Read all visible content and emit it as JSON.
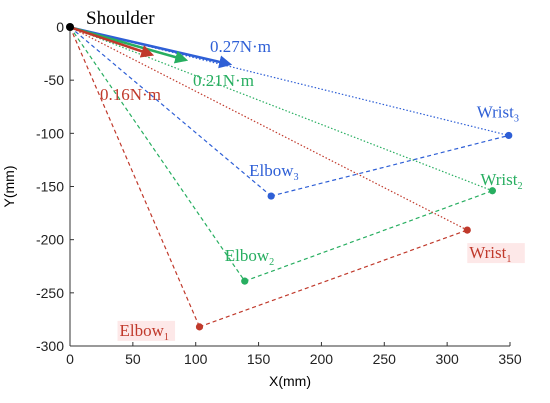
{
  "chart_data": {
    "type": "line",
    "title": "",
    "xlabel": "X(mm)",
    "ylabel": "Y(mm)",
    "xlim": [
      0,
      350
    ],
    "ylim": [
      -300,
      0
    ],
    "xticks": [
      0,
      50,
      100,
      150,
      200,
      250,
      300,
      350
    ],
    "yticks": [
      0,
      -50,
      -100,
      -150,
      -200,
      -250,
      -300
    ],
    "grid": false,
    "legend": "none",
    "shoulder": {
      "label": "Shoulder",
      "x": 0,
      "y": 0,
      "color": "#000000"
    },
    "series": [
      {
        "id": "1",
        "color": "#c0392b",
        "elbow": {
          "label": "Elbow",
          "sub": "1",
          "x": 103,
          "y": -282
        },
        "wrist": {
          "label": "Wrist",
          "sub": "1",
          "x": 316,
          "y": -191
        },
        "torque": {
          "label": "0.16N·m",
          "tip": [
            65,
            -26
          ],
          "from": [
            2,
            -1
          ]
        }
      },
      {
        "id": "2",
        "color": "#27ae60",
        "elbow": {
          "label": "Elbow",
          "sub": "2",
          "x": 139,
          "y": -239
        },
        "wrist": {
          "label": "Wrist",
          "sub": "2",
          "x": 336,
          "y": -154
        },
        "torque": {
          "label": "0.21N·m",
          "tip": [
            92,
            -31
          ],
          "from": [
            2,
            -1
          ]
        }
      },
      {
        "id": "3",
        "color": "#2e5fd6",
        "elbow": {
          "label": "Elbow",
          "sub": "3",
          "x": 160,
          "y": -159
        },
        "wrist": {
          "label": "Wrist",
          "sub": "3",
          "x": 349,
          "y": -102
        },
        "torque": {
          "label": "0.27N·m",
          "tip": [
            127,
            -35
          ],
          "from": [
            2,
            -1
          ]
        }
      }
    ]
  }
}
